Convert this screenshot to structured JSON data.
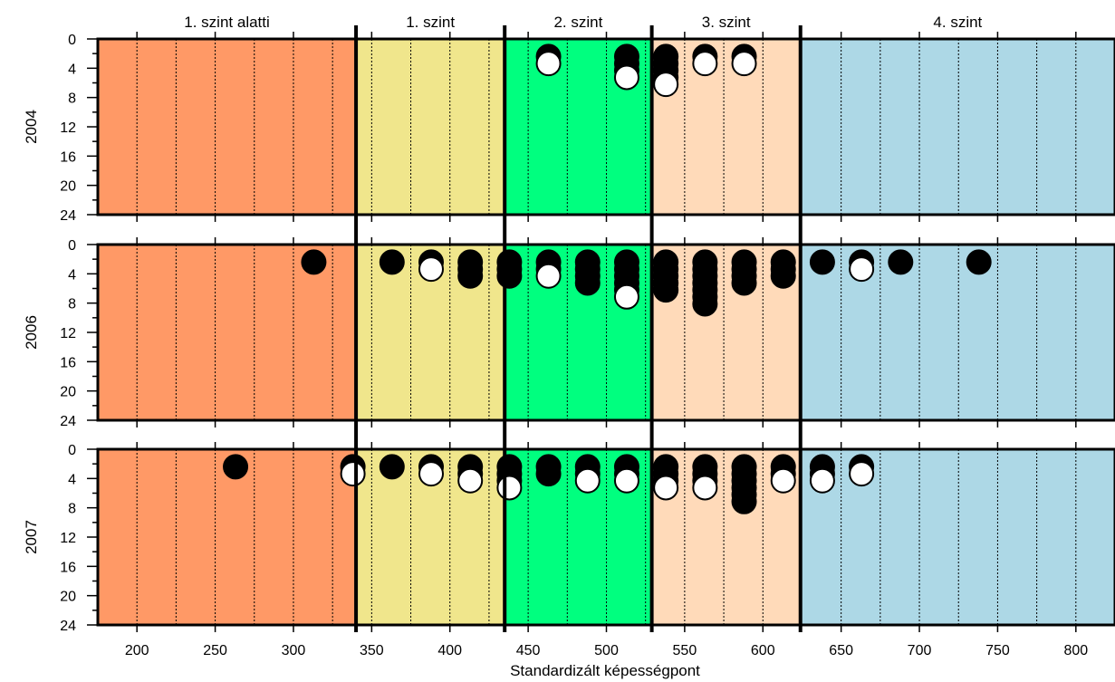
{
  "chart_data": {
    "type": "scatter",
    "title": "",
    "xlabel": "Standardizált képességpont",
    "x_ticks": [
      "200",
      "250",
      "300",
      "350",
      "400",
      "450",
      "500",
      "550",
      "600",
      "650",
      "700",
      "750",
      "800"
    ],
    "x_tick_values": [
      200,
      250,
      300,
      350,
      400,
      450,
      500,
      550,
      600,
      650,
      700,
      750,
      800
    ],
    "xlim": [
      175,
      825
    ],
    "y_ticks": [
      "0",
      "4",
      "8",
      "12",
      "16",
      "20",
      "24"
    ],
    "y_tick_values": [
      0,
      4,
      8,
      12,
      16,
      20,
      24
    ],
    "ylim": [
      0,
      24
    ],
    "grid": "vertical dotted lines every 25 points",
    "levels": [
      {
        "name": "1. szint alatti",
        "from": 175,
        "to": 340,
        "color": "#ff9966"
      },
      {
        "name": "1. szint",
        "from": 340,
        "to": 435,
        "color": "#f0e68c"
      },
      {
        "name": "2. szint",
        "from": 435,
        "to": 529,
        "color": "#00ff7f"
      },
      {
        "name": "3. szint",
        "from": 529,
        "to": 624,
        "color": "#ffdab9"
      },
      {
        "name": "4. szint",
        "from": 624,
        "to": 825,
        "color": "#add8e6"
      }
    ],
    "boundaries": [
      340,
      435,
      529,
      624
    ],
    "marker_colors": {
      "black": "#000000",
      "white": "#ffffff"
    },
    "panels": [
      {
        "label": "2004",
        "stacks": [
          {
            "x": 463,
            "markers": [
              "black",
              "white"
            ]
          },
          {
            "x": 513,
            "markers": [
              "black",
              "black",
              "black",
              "white"
            ]
          },
          {
            "x": 538,
            "markers": [
              "black",
              "black",
              "black",
              "black",
              "white"
            ]
          },
          {
            "x": 563,
            "markers": [
              "black",
              "white"
            ]
          },
          {
            "x": 588,
            "markers": [
              "black",
              "white"
            ]
          }
        ]
      },
      {
        "label": "2006",
        "stacks": [
          {
            "x": 313,
            "markers": [
              "black"
            ]
          },
          {
            "x": 363,
            "markers": [
              "black"
            ]
          },
          {
            "x": 388,
            "markers": [
              "black",
              "white"
            ]
          },
          {
            "x": 413,
            "markers": [
              "black",
              "black",
              "black"
            ]
          },
          {
            "x": 438,
            "markers": [
              "black",
              "black",
              "black"
            ]
          },
          {
            "x": 463,
            "markers": [
              "black",
              "black",
              "white"
            ]
          },
          {
            "x": 488,
            "markers": [
              "black",
              "black",
              "black",
              "black"
            ]
          },
          {
            "x": 513,
            "markers": [
              "black",
              "black",
              "black",
              "black",
              "black",
              "white"
            ]
          },
          {
            "x": 538,
            "markers": [
              "black",
              "black",
              "black",
              "black",
              "black"
            ]
          },
          {
            "x": 563,
            "markers": [
              "black",
              "black",
              "black",
              "black",
              "black",
              "black",
              "black"
            ]
          },
          {
            "x": 588,
            "markers": [
              "black",
              "black",
              "black",
              "black"
            ]
          },
          {
            "x": 613,
            "markers": [
              "black",
              "black",
              "black"
            ]
          },
          {
            "x": 638,
            "markers": [
              "black"
            ]
          },
          {
            "x": 663,
            "markers": [
              "black",
              "white"
            ]
          },
          {
            "x": 688,
            "markers": [
              "black"
            ]
          },
          {
            "x": 738,
            "markers": [
              "black"
            ]
          }
        ]
      },
      {
        "label": "2007",
        "stacks": [
          {
            "x": 263,
            "markers": [
              "black"
            ]
          },
          {
            "x": 338,
            "markers": [
              "black",
              "white"
            ]
          },
          {
            "x": 363,
            "markers": [
              "black"
            ]
          },
          {
            "x": 388,
            "markers": [
              "black",
              "white"
            ]
          },
          {
            "x": 413,
            "markers": [
              "black",
              "black",
              "white"
            ]
          },
          {
            "x": 438,
            "markers": [
              "black",
              "black",
              "black",
              "white"
            ]
          },
          {
            "x": 463,
            "markers": [
              "black",
              "black"
            ]
          },
          {
            "x": 488,
            "markers": [
              "black",
              "black",
              "white"
            ]
          },
          {
            "x": 513,
            "markers": [
              "black",
              "black",
              "white"
            ]
          },
          {
            "x": 538,
            "markers": [
              "black",
              "black",
              "black",
              "white"
            ]
          },
          {
            "x": 563,
            "markers": [
              "black",
              "black",
              "black",
              "white"
            ]
          },
          {
            "x": 588,
            "markers": [
              "black",
              "black",
              "black",
              "black",
              "black",
              "black"
            ]
          },
          {
            "x": 613,
            "markers": [
              "black",
              "black",
              "white"
            ]
          },
          {
            "x": 638,
            "markers": [
              "black",
              "black",
              "white"
            ]
          },
          {
            "x": 663,
            "markers": [
              "black",
              "white"
            ]
          }
        ]
      }
    ]
  }
}
